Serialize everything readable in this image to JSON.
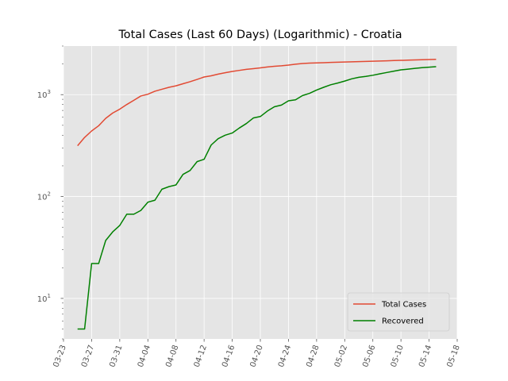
{
  "chart_data": {
    "type": "line",
    "title": "Total Cases (Last 60 Days) (Logarithmic) - Croatia",
    "xlabel": "",
    "ylabel": "",
    "y_scale": "log",
    "ylim": [
      4,
      3000
    ],
    "xlim": [
      "2020-03-23",
      "2020-05-18"
    ],
    "grid": true,
    "legend_position": "lower right",
    "x_tick_labels": [
      "03-23",
      "03-27",
      "03-31",
      "04-04",
      "04-08",
      "04-12",
      "04-16",
      "04-20",
      "04-24",
      "04-28",
      "05-02",
      "05-06",
      "05-10",
      "05-14",
      "05-18"
    ],
    "y_tick_labels": [
      {
        "value": 10,
        "base": "10",
        "exp": "1"
      },
      {
        "value": 100,
        "base": "10",
        "exp": "2"
      },
      {
        "value": 1000,
        "base": "10",
        "exp": "3"
      }
    ],
    "x": [
      "2020-03-25",
      "2020-03-26",
      "2020-03-27",
      "2020-03-28",
      "2020-03-29",
      "2020-03-30",
      "2020-03-31",
      "2020-04-01",
      "2020-04-02",
      "2020-04-03",
      "2020-04-04",
      "2020-04-05",
      "2020-04-06",
      "2020-04-07",
      "2020-04-08",
      "2020-04-09",
      "2020-04-10",
      "2020-04-11",
      "2020-04-12",
      "2020-04-13",
      "2020-04-14",
      "2020-04-15",
      "2020-04-16",
      "2020-04-17",
      "2020-04-18",
      "2020-04-19",
      "2020-04-20",
      "2020-04-21",
      "2020-04-22",
      "2020-04-23",
      "2020-04-24",
      "2020-04-25",
      "2020-04-26",
      "2020-04-27",
      "2020-04-28",
      "2020-04-29",
      "2020-04-30",
      "2020-05-01",
      "2020-05-02",
      "2020-05-03",
      "2020-05-04",
      "2020-05-05",
      "2020-05-06",
      "2020-05-07",
      "2020-05-08",
      "2020-05-09",
      "2020-05-10",
      "2020-05-11",
      "2020-05-12",
      "2020-05-13",
      "2020-05-14",
      "2020-05-15"
    ],
    "series": [
      {
        "name": "Total Cases",
        "color": "#E24A33",
        "values": [
          315,
          380,
          440,
          495,
          585,
          660,
          720,
          800,
          880,
          970,
          1010,
          1080,
          1130,
          1180,
          1220,
          1280,
          1340,
          1410,
          1490,
          1530,
          1590,
          1640,
          1690,
          1730,
          1770,
          1800,
          1830,
          1870,
          1900,
          1920,
          1950,
          1990,
          2020,
          2040,
          2050,
          2060,
          2070,
          2080,
          2090,
          2100,
          2110,
          2120,
          2130,
          2140,
          2150,
          2160,
          2170,
          2180,
          2190,
          2200,
          2210,
          2220
        ]
      },
      {
        "name": "Recovered",
        "color": "#008000",
        "values": [
          5,
          5,
          22,
          22,
          37,
          45,
          52,
          67,
          67,
          73,
          88,
          92,
          118,
          125,
          130,
          165,
          180,
          220,
          232,
          320,
          370,
          400,
          420,
          470,
          520,
          590,
          610,
          690,
          760,
          790,
          870,
          890,
          980,
          1030,
          1110,
          1180,
          1250,
          1300,
          1360,
          1430,
          1480,
          1510,
          1550,
          1600,
          1650,
          1700,
          1750,
          1780,
          1810,
          1840,
          1860,
          1880
        ]
      }
    ]
  }
}
